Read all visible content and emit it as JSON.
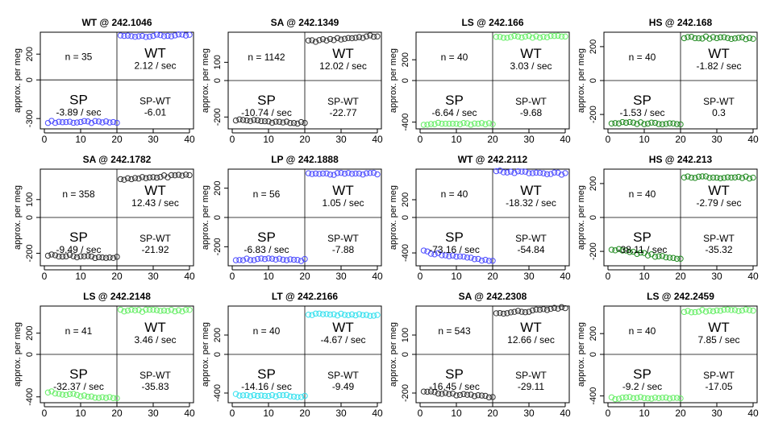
{
  "figure": {
    "ylabel": "approx. per meg",
    "quadrant_labels": {
      "sp": "SP",
      "wt": "WT",
      "diff": "SP-WT"
    }
  },
  "chart_data": [
    {
      "type": "scatter",
      "title": "WT @ 242.1046",
      "n_label": "n = 35",
      "n": 35,
      "wt_rate": "2.12 / sec",
      "sp_rate": "-3.89 / sec",
      "diff": "-6.01",
      "color": "#4c4cff",
      "xlim": [
        0,
        40
      ],
      "ylim": [
        -380,
        370
      ],
      "xticks": [
        0,
        10,
        20,
        30,
        40
      ],
      "yticks": [
        -300,
        0,
        200
      ],
      "wt_start": 340,
      "wt_end": 345,
      "sp_start": -325,
      "sp_end": -330
    },
    {
      "type": "scatter",
      "title": "SA @ 242.1349",
      "n_label": "n = 1142",
      "n": 1142,
      "wt_rate": "12.02 / sec",
      "sp_rate": "-10.74 / sec",
      "diff": "-22.77",
      "color": "#303030",
      "xlim": [
        0,
        40
      ],
      "ylim": [
        -265,
        265
      ],
      "xticks": [
        0,
        10,
        20,
        30,
        40
      ],
      "yticks": [
        -200,
        0,
        100
      ],
      "wt_start": 215,
      "wt_end": 245,
      "sp_start": -215,
      "sp_end": -235
    },
    {
      "type": "scatter",
      "title": "LS @ 242.166",
      "n_label": "n = 40",
      "n": 40,
      "wt_rate": "3.03 / sec",
      "sp_rate": "-6.64 / sec",
      "diff": "-9.68",
      "color": "#66ee66",
      "xlim": [
        0,
        40
      ],
      "ylim": [
        -465,
        465
      ],
      "xticks": [
        0,
        10,
        20,
        30,
        40
      ],
      "yticks": [
        -400,
        0,
        200
      ],
      "wt_start": 420,
      "wt_end": 425,
      "sp_start": -415,
      "sp_end": -420
    },
    {
      "type": "scatter",
      "title": "HS @ 242.168",
      "n_label": "n = 40",
      "n": 40,
      "wt_rate": "-1.82 / sec",
      "sp_rate": "-1.53 / sec",
      "diff": "0.3",
      "color": "#228b22",
      "xlim": [
        0,
        40
      ],
      "ylim": [
        -285,
        285
      ],
      "xticks": [
        0,
        10,
        20,
        30,
        40
      ],
      "yticks": [
        -200,
        0,
        200
      ],
      "wt_start": 255,
      "wt_end": 248,
      "sp_start": -250,
      "sp_end": -252
    },
    {
      "type": "scatter",
      "title": "SA @ 242.1782",
      "n_label": "n = 358",
      "n": 358,
      "wt_rate": "12.43 / sec",
      "sp_rate": "-9.49 / sec",
      "diff": "-21.92",
      "color": "#303030",
      "xlim": [
        0,
        40
      ],
      "ylim": [
        -270,
        270
      ],
      "xticks": [
        0,
        10,
        20,
        30,
        40
      ],
      "yticks": [
        -200,
        0,
        100
      ],
      "wt_start": 210,
      "wt_end": 240,
      "sp_start": -210,
      "sp_end": -225
    },
    {
      "type": "scatter",
      "title": "LP @ 242.1888",
      "n_label": "n = 56",
      "n": 56,
      "wt_rate": "1.05 / sec",
      "sp_rate": "-6.83 / sec",
      "diff": "-7.88",
      "color": "#4c4cff",
      "xlim": [
        0,
        40
      ],
      "ylim": [
        -330,
        330
      ],
      "xticks": [
        0,
        10,
        20,
        30,
        40
      ],
      "yticks": [
        -200,
        0,
        200
      ],
      "wt_start": 295,
      "wt_end": 298,
      "sp_start": -285,
      "sp_end": -290
    },
    {
      "type": "scatter",
      "title": "WT @ 242.2112",
      "n_label": "n = 40",
      "n": 40,
      "wt_rate": "-18.32 / sec",
      "sp_rate": "-73.16 / sec",
      "diff": "-54.84",
      "color": "#4c4cff",
      "xlim": [
        0,
        40
      ],
      "ylim": [
        -545,
        545
      ],
      "xticks": [
        0,
        10,
        20,
        30,
        40
      ],
      "yticks": [
        -400,
        0,
        200
      ],
      "wt_start": 520,
      "wt_end": 490,
      "sp_start": -385,
      "sp_end": -500
    },
    {
      "type": "scatter",
      "title": "HS @ 242.213",
      "n_label": "n = 40",
      "n": 40,
      "wt_rate": "-2.79 / sec",
      "sp_rate": "-38.11 / sec",
      "diff": "-35.32",
      "color": "#228b22",
      "xlim": [
        0,
        40
      ],
      "ylim": [
        -285,
        285
      ],
      "xticks": [
        0,
        10,
        20,
        30,
        40
      ],
      "yticks": [
        -200,
        0,
        200
      ],
      "wt_start": 240,
      "wt_end": 235,
      "sp_start": -185,
      "sp_end": -250
    },
    {
      "type": "scatter",
      "title": "LS @ 242.2148",
      "n_label": "n = 41",
      "n": 41,
      "wt_rate": "3.46 / sec",
      "sp_rate": "-32.37 / sec",
      "diff": "-35.83",
      "color": "#66ee66",
      "xlim": [
        0,
        40
      ],
      "ylim": [
        -455,
        455
      ],
      "xticks": [
        0,
        10,
        20,
        30,
        40
      ],
      "yticks": [
        -400,
        0,
        200
      ],
      "wt_start": 410,
      "wt_end": 415,
      "sp_start": -355,
      "sp_end": -420
    },
    {
      "type": "scatter",
      "title": "LT @ 242.2166",
      "n_label": "n = 40",
      "n": 40,
      "wt_rate": "-4.67 / sec",
      "sp_rate": "-14.16 / sec",
      "diff": "-9.49",
      "color": "#33e0ee",
      "xlim": [
        0,
        40
      ],
      "ylim": [
        -500,
        500
      ],
      "xticks": [
        0,
        10,
        20,
        30,
        40
      ],
      "yticks": [
        -400,
        0,
        200
      ],
      "wt_start": 420,
      "wt_end": 400,
      "sp_start": -420,
      "sp_end": -435
    },
    {
      "type": "scatter",
      "title": "SA @ 242.2308",
      "n_label": "n = 543",
      "n": 543,
      "wt_rate": "12.66 / sec",
      "sp_rate": "-16.45 / sec",
      "diff": "-29.11",
      "color": "#303030",
      "xlim": [
        0,
        40
      ],
      "ylim": [
        -250,
        250
      ],
      "xticks": [
        0,
        10,
        20,
        30,
        40
      ],
      "yticks": [
        -200,
        0,
        100
      ],
      "wt_start": 210,
      "wt_end": 240,
      "sp_start": -195,
      "sp_end": -220
    },
    {
      "type": "scatter",
      "title": "LS @ 242.2459",
      "n_label": "n = 40",
      "n": 40,
      "wt_rate": "7.85 / sec",
      "sp_rate": "-9.2 / sec",
      "diff": "-17.05",
      "color": "#66ee66",
      "xlim": [
        0,
        40
      ],
      "ylim": [
        -465,
        465
      ],
      "xticks": [
        0,
        10,
        20,
        30,
        40
      ],
      "yticks": [
        -400,
        0,
        200
      ],
      "wt_start": 415,
      "wt_end": 425,
      "sp_start": -420,
      "sp_end": -425
    }
  ]
}
